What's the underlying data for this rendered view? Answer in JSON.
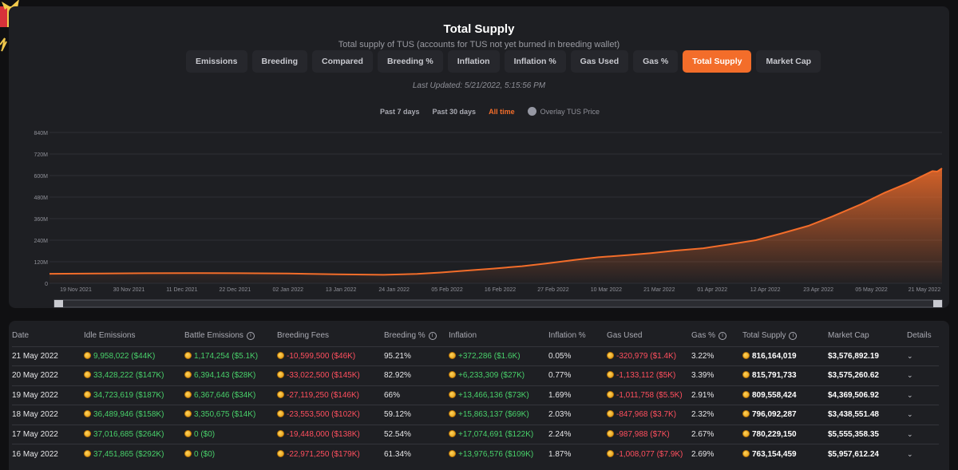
{
  "header": {
    "title": "Total Supply",
    "subtitle": "Total supply of TUS (accounts for TUS not yet burned in breeding wallet)",
    "last_updated": "Last Updated: 5/21/2022, 5:15:56 PM"
  },
  "tabs": [
    {
      "label": "Emissions",
      "active": false
    },
    {
      "label": "Breeding",
      "active": false
    },
    {
      "label": "Compared",
      "active": false
    },
    {
      "label": "Breeding %",
      "active": false
    },
    {
      "label": "Inflation",
      "active": false
    },
    {
      "label": "Inflation %",
      "active": false
    },
    {
      "label": "Gas Used",
      "active": false
    },
    {
      "label": "Gas %",
      "active": false
    },
    {
      "label": "Total Supply",
      "active": true
    },
    {
      "label": "Market Cap",
      "active": false
    }
  ],
  "ranges": {
    "past7": "Past 7 days",
    "past30": "Past 30 days",
    "all": "All time",
    "active": "All time",
    "overlay_label": "Overlay TUS Price"
  },
  "colors": {
    "accent": "#f36d2a",
    "positive": "#48d06a",
    "negative": "#ff4f5e",
    "panel": "#1e1f23"
  },
  "chart_data": {
    "type": "area",
    "title": "Total Supply",
    "ylabel": "",
    "xlabel": "",
    "ylim": [
      0,
      840
    ],
    "y_ticks": [
      "0",
      "120M",
      "240M",
      "360M",
      "480M",
      "600M",
      "720M",
      "840M"
    ],
    "x_ticks": [
      "19 Nov 2021",
      "30 Nov 2021",
      "11 Dec 2021",
      "22 Dec 2021",
      "02 Jan 2022",
      "13 Jan 2022",
      "24 Jan 2022",
      "05 Feb 2022",
      "16 Feb 2022",
      "27 Feb 2022",
      "10 Mar 2022",
      "21 Mar 2022",
      "01 Apr 2022",
      "12 Apr 2022",
      "23 Apr 2022",
      "05 May 2022",
      "21 May 2022"
    ],
    "grid": true,
    "series": [
      {
        "values_unit": "M",
        "x": [
          "2021-11-15",
          "2021-11-25",
          "2021-12-05",
          "2021-12-15",
          "2021-12-25",
          "2022-01-04",
          "2022-01-14",
          "2022-01-24",
          "2022-01-31",
          "2022-02-05",
          "2022-02-10",
          "2022-02-16",
          "2022-02-22",
          "2022-02-27",
          "2022-03-05",
          "2022-03-10",
          "2022-03-16",
          "2022-03-21",
          "2022-03-26",
          "2022-04-01",
          "2022-04-06",
          "2022-04-12",
          "2022-04-17",
          "2022-04-23",
          "2022-04-28",
          "2022-05-04",
          "2022-05-09",
          "2022-05-14",
          "2022-05-17",
          "2022-05-19",
          "2022-05-20",
          "2022-05-21"
        ],
        "values": [
          53,
          54,
          56,
          57,
          56,
          54,
          50,
          47,
          52,
          60,
          70,
          82,
          95,
          110,
          130,
          145,
          157,
          168,
          182,
          195,
          215,
          240,
          275,
          320,
          372,
          440,
          505,
          560,
          599,
          625,
          622,
          640
        ]
      }
    ]
  },
  "table": {
    "headers": {
      "date": "Date",
      "idle": "Idle Emissions",
      "battle": "Battle Emissions",
      "fees": "Breeding Fees",
      "breeding_pct": "Breeding %",
      "inflation": "Inflation",
      "inflation_pct": "Inflation %",
      "gas": "Gas Used",
      "gas_pct": "Gas %",
      "total": "Total Supply",
      "mcap": "Market Cap",
      "details": "Details"
    },
    "rows": [
      {
        "date": "21 May 2022",
        "idle": "9,958,022 ($44K)",
        "battle": "1,174,254 ($5.1K)",
        "fees": "-10,599,500 ($46K)",
        "breeding_pct": "95.21%",
        "inflation": "+372,286 ($1.6K)",
        "inflation_pct": "0.05%",
        "gas": "-320,979 ($1.4K)",
        "gas_pct": "3.22%",
        "total": "816,164,019",
        "mcap": "$3,576,892.19"
      },
      {
        "date": "20 May 2022",
        "idle": "33,428,222 ($147K)",
        "battle": "6,394,143 ($28K)",
        "fees": "-33,022,500 ($145K)",
        "breeding_pct": "82.92%",
        "inflation": "+6,233,309 ($27K)",
        "inflation_pct": "0.77%",
        "gas": "-1,133,112 ($5K)",
        "gas_pct": "3.39%",
        "total": "815,791,733",
        "mcap": "$3,575,260.62"
      },
      {
        "date": "19 May 2022",
        "idle": "34,723,619 ($187K)",
        "battle": "6,367,646 ($34K)",
        "fees": "-27,119,250 ($146K)",
        "breeding_pct": "66%",
        "inflation": "+13,466,136 ($73K)",
        "inflation_pct": "1.69%",
        "gas": "-1,011,758 ($5.5K)",
        "gas_pct": "2.91%",
        "total": "809,558,424",
        "mcap": "$4,369,506.92"
      },
      {
        "date": "18 May 2022",
        "idle": "36,489,946 ($158K)",
        "battle": "3,350,675 ($14K)",
        "fees": "-23,553,500 ($102K)",
        "breeding_pct": "59.12%",
        "inflation": "+15,863,137 ($69K)",
        "inflation_pct": "2.03%",
        "gas": "-847,968 ($3.7K)",
        "gas_pct": "2.32%",
        "total": "796,092,287",
        "mcap": "$3,438,551.48"
      },
      {
        "date": "17 May 2022",
        "idle": "37,016,685 ($264K)",
        "battle": "0 ($0)",
        "fees": "-19,448,000 ($138K)",
        "breeding_pct": "52.54%",
        "inflation": "+17,074,691 ($122K)",
        "inflation_pct": "2.24%",
        "gas": "-987,988 ($7K)",
        "gas_pct": "2.67%",
        "total": "780,229,150",
        "mcap": "$5,555,358.35"
      },
      {
        "date": "16 May 2022",
        "idle": "37,451,865 ($292K)",
        "battle": "0 ($0)",
        "fees": "-22,971,250 ($179K)",
        "breeding_pct": "61.34%",
        "inflation": "+13,976,576 ($109K)",
        "inflation_pct": "1.87%",
        "gas": "-1,008,077 ($7.9K)",
        "gas_pct": "2.69%",
        "total": "763,154,459",
        "mcap": "$5,957,612.24"
      }
    ]
  }
}
